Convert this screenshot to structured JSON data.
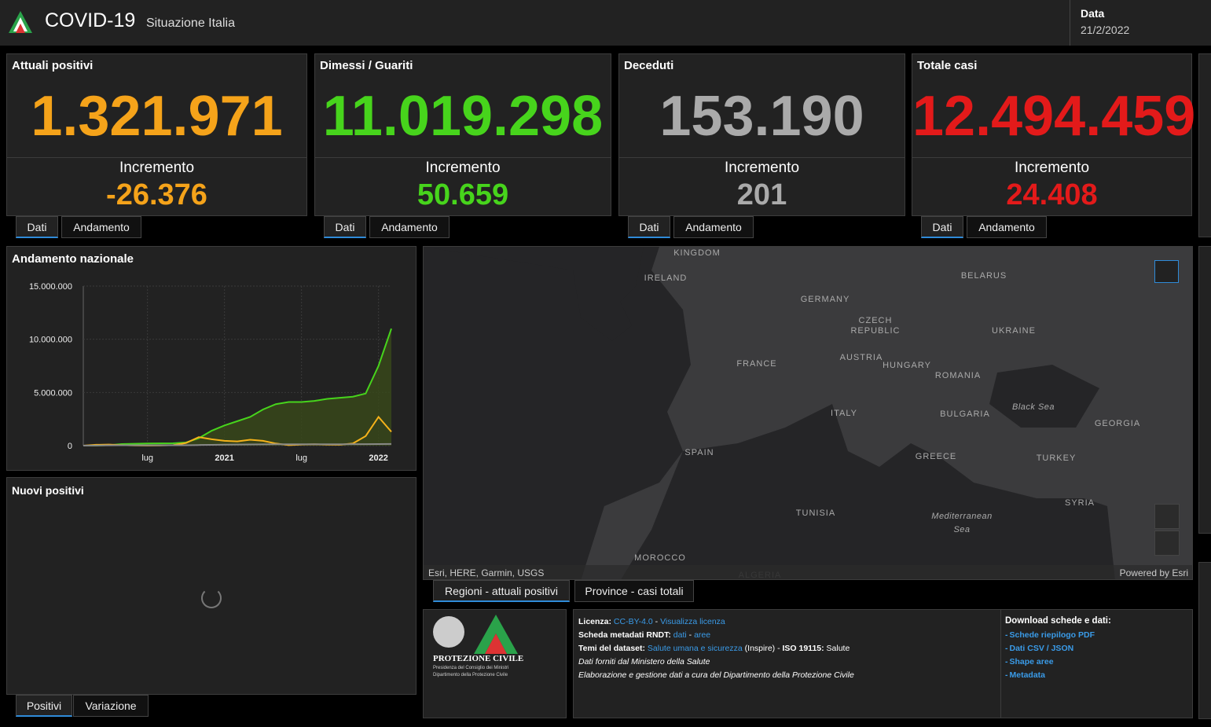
{
  "header": {
    "title": "COVID-19",
    "subtitle": "Situazione Italia",
    "date_label": "Data",
    "date": "21/2/2022"
  },
  "cards": [
    {
      "title": "Attuali positivi",
      "value": "1.321.971",
      "increment_label": "Incremento",
      "increment": "-26.376",
      "color": "#f5a31a",
      "tabs": [
        "Dati",
        "Andamento"
      ]
    },
    {
      "title": "Dimessi / Guariti",
      "value": "11.019.298",
      "increment_label": "Incremento",
      "increment": "50.659",
      "color": "#47d41c",
      "tabs": [
        "Dati",
        "Andamento"
      ]
    },
    {
      "title": "Deceduti",
      "value": "153.190",
      "increment_label": "Incremento",
      "increment": "201",
      "color": "#aaaaaa",
      "tabs": [
        "Dati",
        "Andamento"
      ]
    },
    {
      "title": "Totale casi",
      "value": "12.494.459",
      "increment_label": "Incremento",
      "increment": "24.408",
      "color": "#e31a1a",
      "tabs": [
        "Dati",
        "Andamento"
      ]
    }
  ],
  "national": {
    "title": "Andamento nazionale",
    "chart": {
      "type": "line",
      "categories": [
        null,
        null,
        null,
        null,
        null,
        "lug",
        null,
        null,
        null,
        null,
        null,
        "2021",
        null,
        null,
        null,
        null,
        null,
        "lug",
        null,
        null,
        null,
        null,
        null,
        "2022",
        null
      ],
      "ylim": [
        0,
        15000000
      ],
      "yticks": [
        {
          "value": 0,
          "label": "0"
        },
        {
          "value": 5000000,
          "label": "5.000.000"
        },
        {
          "value": 10000000,
          "label": "10.000.000"
        },
        {
          "value": 15000000,
          "label": "15.000.000"
        }
      ],
      "grid": true,
      "series": [
        {
          "color": "#47d41c",
          "fill": "#3a4a1a",
          "values": [
            0,
            10000,
            50000,
            150000,
            180000,
            200000,
            210000,
            220000,
            300000,
            700000,
            1400000,
            1900000,
            2300000,
            2700000,
            3400000,
            3900000,
            4100000,
            4100000,
            4200000,
            4400000,
            4500000,
            4600000,
            4900000,
            7500000,
            11000000
          ]
        },
        {
          "color": "#f5b21a",
          "values": [
            0,
            80000,
            100000,
            50000,
            20000,
            13000,
            20000,
            50000,
            250000,
            800000,
            600000,
            450000,
            400000,
            550000,
            450000,
            200000,
            50000,
            100000,
            130000,
            90000,
            80000,
            200000,
            900000,
            2700000,
            1300000
          ]
        },
        {
          "color": "#888888",
          "values": [
            0,
            12000,
            28000,
            33000,
            35000,
            35000,
            35000,
            36000,
            40000,
            60000,
            75000,
            90000,
            97000,
            110000,
            120000,
            126000,
            127000,
            128000,
            130000,
            131000,
            133000,
            135000,
            137000,
            146000,
            153000
          ]
        }
      ]
    }
  },
  "new_positives": {
    "title": "Nuovi positivi",
    "tabs": [
      "Positivi",
      "Variazione"
    ]
  },
  "map": {
    "labels": [
      "KINGDOM",
      "IRELAND",
      "BELARUS",
      "GERMANY",
      "CZECH",
      "REPUBLIC",
      "UKRAINE",
      "FRANCE",
      "AUSTRIA",
      "HUNGARY",
      "ROMANIA",
      "ITALY",
      "BULGARIA",
      "Black Sea",
      "GEORGIA",
      "SPAIN",
      "GREECE",
      "TURKEY",
      "SYRIA",
      "TUNISIA",
      "Mediterranean",
      "Sea",
      "MOROCCO",
      "ALGERIA"
    ],
    "attribution": "Esri, HERE, Garmin, USGS",
    "powered": "Powered by Esri",
    "tabs": [
      "Regioni - attuali positivi",
      "Province - casi totali"
    ]
  },
  "logo": {
    "name": "PROTEZIONE CIVILE",
    "sub1": "Presidenza del Consiglio dei Ministri",
    "sub2": "Dipartimento della Protezione Civile"
  },
  "info": {
    "lines": [
      [
        {
          "text": "Licenza:",
          "style": "bold"
        },
        {
          "text": " CC-BY-4.0",
          "style": "link"
        },
        {
          "text": " - ",
          "style": "plain"
        },
        {
          "text": "Visualizza licenza",
          "style": "link"
        }
      ],
      [
        {
          "text": "Scheda metadati RNDT:",
          "style": "bold"
        },
        {
          "text": " dati",
          "style": "link"
        },
        {
          "text": " - ",
          "style": "plain"
        },
        {
          "text": "aree",
          "style": "link"
        }
      ],
      [
        {
          "text": "Temi del dataset:",
          "style": "bold"
        },
        {
          "text": " Salute umana e sicurezza",
          "style": "link"
        },
        {
          "text": " (Inspire) - ",
          "style": "plain"
        },
        {
          "text": "ISO 19115:",
          "style": "bold"
        },
        {
          "text": " Salute",
          "style": "plain"
        }
      ],
      [
        {
          "text": "Dati forniti dal Ministero della Salute",
          "style": "italic"
        }
      ],
      [
        {
          "text": "Elaborazione e gestione dati a cura del Dipartimento della Protezione Civile",
          "style": "italic"
        }
      ]
    ],
    "download_title": "Download schede e dati:",
    "downloads": [
      "Schede riepilogo PDF",
      "Dati CSV / JSON",
      "Shape aree",
      "Metadata"
    ]
  }
}
